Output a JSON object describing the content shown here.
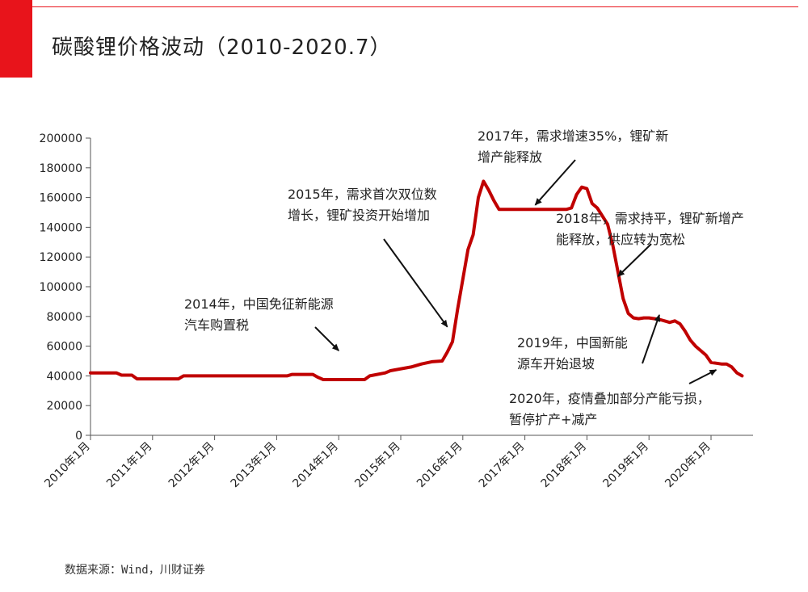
{
  "page": {
    "title": "碳酸锂价格波动（2010-2020.7）",
    "source_note": "数据来源：Wind，川财证券",
    "accent_color": "#e8141b"
  },
  "chart_data": {
    "type": "line",
    "title": "",
    "xlabel": "",
    "ylabel": "",
    "ylim": [
      0,
      200000
    ],
    "yticks": [
      0,
      20000,
      40000,
      60000,
      80000,
      100000,
      120000,
      140000,
      160000,
      180000,
      200000
    ],
    "x_tick_labels": [
      "2010年1月",
      "2011年1月",
      "2012年1月",
      "2013年1月",
      "2014年1月",
      "2015年1月",
      "2016年1月",
      "2017年1月",
      "2018年1月",
      "2019年1月",
      "2020年1月"
    ],
    "grid": false,
    "legend": "none",
    "series": [
      {
        "color": "#c00000",
        "x": [
          "2010-01",
          "2010-06",
          "2010-07",
          "2010-09",
          "2010-10",
          "2011-06",
          "2011-07",
          "2012-06",
          "2012-07",
          "2013-03",
          "2013-04",
          "2013-08",
          "2013-09",
          "2013-10",
          "2014-06",
          "2014-07",
          "2014-10",
          "2014-11",
          "2015-03",
          "2015-05",
          "2015-07",
          "2015-09",
          "2015-10",
          "2015-11",
          "2015-12",
          "2016-01",
          "2016-02",
          "2016-03",
          "2016-04",
          "2016-05",
          "2016-06",
          "2016-07",
          "2016-08",
          "2016-09",
          "2016-10",
          "2017-01",
          "2017-06",
          "2017-09",
          "2017-10",
          "2017-11",
          "2017-12",
          "2018-01",
          "2018-02",
          "2018-03",
          "2018-05",
          "2018-06",
          "2018-07",
          "2018-08",
          "2018-09",
          "2018-10",
          "2018-11",
          "2018-12",
          "2019-01",
          "2019-03",
          "2019-04",
          "2019-05",
          "2019-06",
          "2019-07",
          "2019-08",
          "2019-09",
          "2019-10",
          "2019-11",
          "2019-12",
          "2020-01",
          "2020-03",
          "2020-04",
          "2020-05",
          "2020-06",
          "2020-07"
        ],
        "y": [
          42000,
          42000,
          40500,
          40500,
          38000,
          38000,
          40000,
          40000,
          40000,
          40000,
          41000,
          41000,
          39000,
          37500,
          37500,
          40000,
          42000,
          43500,
          46000,
          48000,
          49500,
          50000,
          56000,
          63000,
          85000,
          105000,
          125000,
          135000,
          160000,
          171000,
          165000,
          158000,
          152000,
          152000,
          152000,
          152000,
          152000,
          152000,
          153000,
          162000,
          167000,
          166000,
          156000,
          153000,
          142000,
          128000,
          110000,
          92000,
          82000,
          79000,
          78500,
          79000,
          79000,
          78000,
          77000,
          76000,
          77000,
          75000,
          70000,
          64000,
          60000,
          57000,
          54000,
          49000,
          48000,
          48000,
          46000,
          42000,
          40000
        ]
      }
    ],
    "annotations": [
      {
        "lines": [
          "2014年，中国免征新能源",
          "汽车购置税"
        ],
        "arrow_to": [
          "2014-01",
          57000
        ]
      },
      {
        "lines": [
          "2015年，需求首次双位数",
          "增长，锂矿投资开始增加"
        ],
        "arrow_to": [
          "2015-10",
          73000
        ]
      },
      {
        "lines": [
          "2017年，需求增速35%，锂矿新",
          "增产能释放"
        ],
        "arrow_to": [
          "2017-03",
          155000
        ]
      },
      {
        "lines": [
          "2018年，需求持平，锂矿新增产",
          "能释放，供应转为宽松"
        ],
        "arrow_to": [
          "2018-07",
          107000
        ]
      },
      {
        "lines": [
          "2019年，中国新能",
          "源车开始退坡"
        ],
        "arrow_to": [
          "2019-03",
          81000
        ]
      },
      {
        "lines": [
          "2020年，疫情叠加部分产能亏损，",
          "暂停扩产+减产"
        ],
        "arrow_to": [
          "2020-02",
          44000
        ]
      }
    ]
  }
}
